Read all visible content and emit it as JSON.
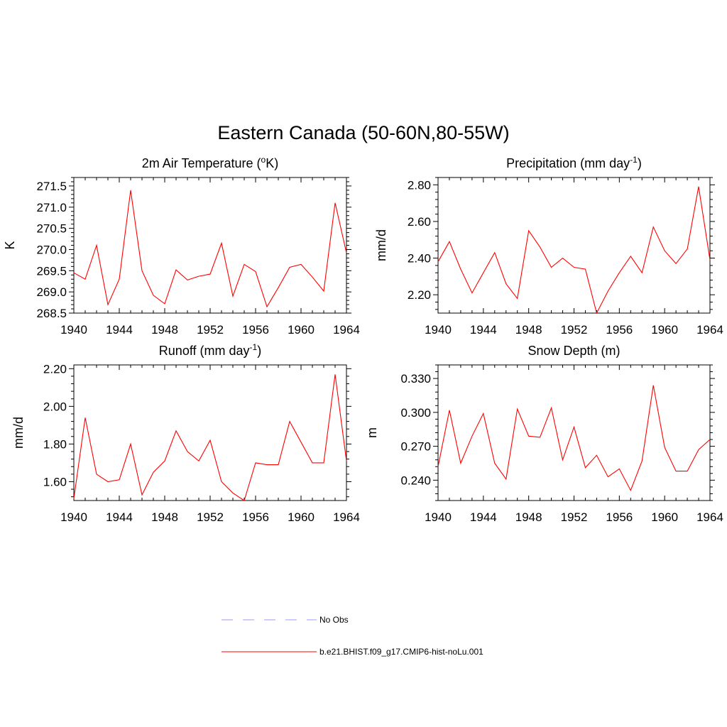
{
  "title": "Eastern Canada (50-60N,80-55W)",
  "legend": [
    {
      "label": "No Obs",
      "color": "#9999ff",
      "dash": true
    },
    {
      "label": "b.e21.BHIST.f09_g17.CMIP6-hist-noLu.001",
      "color": "#ff0000",
      "dash": false
    }
  ],
  "chart_data": [
    {
      "type": "line",
      "title": "2m Air Temperature (",
      "title_sup": "o",
      "title_after": "K)",
      "xlabel": "",
      "ylabel": "K",
      "xlim": [
        1940,
        1964
      ],
      "ylim": [
        268.5,
        271.7
      ],
      "xticks": [
        "1940",
        "1944",
        "1948",
        "1952",
        "1956",
        "1960",
        "1964"
      ],
      "yticks": [
        "268.5",
        "269.0",
        "269.5",
        "270.0",
        "270.5",
        "271.0",
        "271.5"
      ],
      "series": [
        {
          "color": "#ff0000",
          "x": [
            1940,
            1941,
            1942,
            1943,
            1944,
            1945,
            1946,
            1947,
            1948,
            1949,
            1950,
            1951,
            1952,
            1953,
            1954,
            1955,
            1956,
            1957,
            1958,
            1959,
            1960,
            1961,
            1962,
            1963,
            1964
          ],
          "values": [
            269.45,
            269.3,
            270.1,
            268.7,
            269.3,
            271.4,
            269.5,
            268.92,
            268.72,
            269.52,
            269.28,
            269.37,
            269.42,
            270.15,
            268.9,
            269.65,
            269.48,
            268.65,
            269.1,
            269.58,
            269.65,
            269.35,
            269.02,
            271.1,
            269.92
          ]
        }
      ]
    },
    {
      "type": "line",
      "title": "Precipitation (mm day",
      "title_sup": "-1",
      "title_after": ")",
      "xlabel": "",
      "ylabel": "mm/d",
      "xlim": [
        1940,
        1964
      ],
      "ylim": [
        2.1,
        2.84
      ],
      "xticks": [
        "1940",
        "1944",
        "1948",
        "1952",
        "1956",
        "1960",
        "1964"
      ],
      "yticks": [
        "2.20",
        "2.40",
        "2.60",
        "2.80"
      ],
      "series": [
        {
          "color": "#ff0000",
          "x": [
            1940,
            1941,
            1942,
            1943,
            1944,
            1945,
            1946,
            1947,
            1948,
            1949,
            1950,
            1951,
            1952,
            1953,
            1954,
            1955,
            1956,
            1957,
            1958,
            1959,
            1960,
            1961,
            1962,
            1963,
            1964
          ],
          "values": [
            2.38,
            2.49,
            2.34,
            2.21,
            2.32,
            2.43,
            2.26,
            2.18,
            2.55,
            2.46,
            2.35,
            2.4,
            2.35,
            2.34,
            2.1,
            2.22,
            2.32,
            2.41,
            2.32,
            2.57,
            2.44,
            2.37,
            2.45,
            2.79,
            2.39
          ]
        }
      ]
    },
    {
      "type": "line",
      "title": "Runoff (mm day",
      "title_sup": "-1",
      "title_after": ")",
      "xlabel": "",
      "ylabel": "mm/d",
      "xlim": [
        1940,
        1964
      ],
      "ylim": [
        1.5,
        2.22
      ],
      "xticks": [
        "1940",
        "1944",
        "1948",
        "1952",
        "1956",
        "1960",
        "1964"
      ],
      "yticks": [
        "1.60",
        "1.80",
        "2.00",
        "2.20"
      ],
      "series": [
        {
          "color": "#ff0000",
          "x": [
            1940,
            1941,
            1942,
            1943,
            1944,
            1945,
            1946,
            1947,
            1948,
            1949,
            1950,
            1951,
            1952,
            1953,
            1954,
            1955,
            1956,
            1957,
            1958,
            1959,
            1960,
            1961,
            1962,
            1963,
            1964
          ],
          "values": [
            1.51,
            1.94,
            1.64,
            1.6,
            1.61,
            1.8,
            1.53,
            1.65,
            1.71,
            1.87,
            1.76,
            1.71,
            1.82,
            1.6,
            1.54,
            1.5,
            1.7,
            1.69,
            1.69,
            1.92,
            1.81,
            1.7,
            1.7,
            2.17,
            1.71
          ]
        }
      ]
    },
    {
      "type": "line",
      "title": "Snow Depth (m)",
      "title_sup": "",
      "title_after": "",
      "xlabel": "",
      "ylabel": "m",
      "xlim": [
        1940,
        1964
      ],
      "ylim": [
        0.222,
        0.342
      ],
      "xticks": [
        "1940",
        "1944",
        "1948",
        "1952",
        "1956",
        "1960",
        "1964"
      ],
      "yticks": [
        "0.240",
        "0.270",
        "0.300",
        "0.330"
      ],
      "series": [
        {
          "color": "#ff0000",
          "x": [
            1940,
            1941,
            1942,
            1943,
            1944,
            1945,
            1946,
            1947,
            1948,
            1949,
            1950,
            1951,
            1952,
            1953,
            1954,
            1955,
            1956,
            1957,
            1958,
            1959,
            1960,
            1961,
            1962,
            1963,
            1964
          ],
          "values": [
            0.252,
            0.302,
            0.255,
            0.279,
            0.299,
            0.255,
            0.241,
            0.303,
            0.279,
            0.278,
            0.304,
            0.258,
            0.287,
            0.251,
            0.262,
            0.243,
            0.25,
            0.231,
            0.257,
            0.324,
            0.269,
            0.248,
            0.248,
            0.267,
            0.276
          ]
        }
      ]
    }
  ]
}
